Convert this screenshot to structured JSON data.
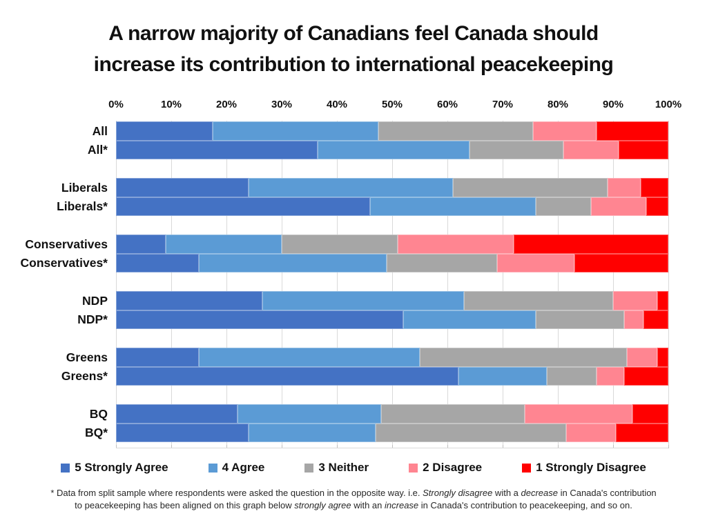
{
  "title": {
    "lines": [
      "A narrow majority of Canadians feel Canada should",
      "increase its contribution to international peacekeeping"
    ]
  },
  "chart_data": {
    "type": "bar",
    "subtype": "horizontal_stacked",
    "unit": "percent",
    "xlim": [
      0,
      100
    ],
    "x_ticks": [
      "0%",
      "10%",
      "20%",
      "30%",
      "40%",
      "50%",
      "60%",
      "70%",
      "80%",
      "90%",
      "100%"
    ],
    "grid": true,
    "legend_position": "bottom",
    "series": [
      {
        "name": "5 Strongly Agree",
        "color": "#4472C4"
      },
      {
        "name": "4 Agree",
        "color": "#5B9BD5"
      },
      {
        "name": "3 Neither",
        "color": "#A6A6A6"
      },
      {
        "name": "2 Disagree",
        "color": "#FF8591"
      },
      {
        "name": "1 Strongly Disagree",
        "color": "#FF0000"
      }
    ],
    "groups": [
      {
        "label": "All",
        "split_label": "All*",
        "values": [
          17.5,
          30,
          28,
          11.5,
          13
        ],
        "split_values": [
          36.5,
          27.5,
          17,
          10,
          9
        ]
      },
      {
        "label": "Liberals",
        "split_label": "Liberals*",
        "values": [
          24,
          37,
          28,
          6,
          5
        ],
        "split_values": [
          46,
          30,
          10,
          10,
          4
        ]
      },
      {
        "label": "Conservatives",
        "split_label": "Conservatives*",
        "values": [
          9,
          21,
          21,
          21,
          28
        ],
        "split_values": [
          15,
          34,
          20,
          14,
          17
        ]
      },
      {
        "label": "NDP",
        "split_label": "NDP*",
        "values": [
          26.5,
          36.5,
          27,
          8,
          2
        ],
        "split_values": [
          52,
          24,
          16,
          3.5,
          4.5
        ]
      },
      {
        "label": "Greens",
        "split_label": "Greens*",
        "values": [
          15,
          40,
          37.5,
          5.5,
          2
        ],
        "split_values": [
          62,
          16,
          9,
          5,
          8
        ]
      },
      {
        "label": "BQ",
        "split_label": "BQ*",
        "values": [
          22,
          26,
          26,
          19.5,
          6.5
        ],
        "split_values": [
          24,
          23,
          34.5,
          9,
          9.5
        ]
      }
    ]
  },
  "footnote": {
    "line1": [
      {
        "text": "* Data from split sample where respondents were asked the question in the opposite way.  i.e. ",
        "italic": false
      },
      {
        "text": "Strongly disagree",
        "italic": true
      },
      {
        "text": " with a ",
        "italic": false
      },
      {
        "text": "decrease",
        "italic": true
      },
      {
        "text": " in Canada's contribution",
        "italic": false
      }
    ],
    "line2": [
      {
        "text": "to peacekeeping has been aligned on this graph below ",
        "italic": false
      },
      {
        "text": "strongly agree",
        "italic": true
      },
      {
        "text": " with an ",
        "italic": false
      },
      {
        "text": "increase",
        "italic": true
      },
      {
        "text": " in Canada's contribution to peacekeeping, and so on.",
        "italic": false
      }
    ]
  }
}
